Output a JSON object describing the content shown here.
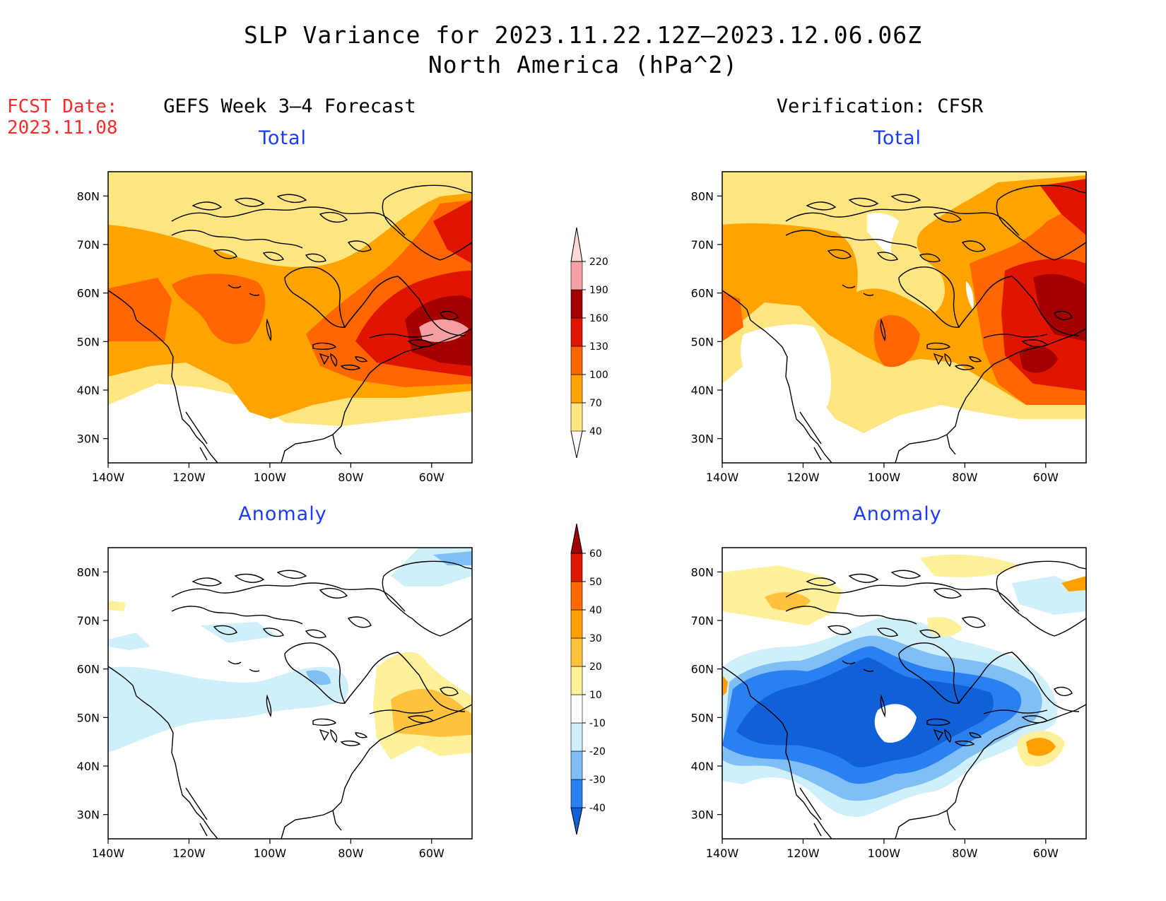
{
  "header": {
    "title_line1": "SLP Variance for 2023.11.22.12Z–2023.12.06.06Z",
    "title_line2": "North America (hPa^2)"
  },
  "fcst": {
    "label": "FCST Date:",
    "date": "2023.11.08"
  },
  "columns": {
    "left": "GEFS Week 3–4 Forecast",
    "right": "Verification: CFSR"
  },
  "panel_titles": {
    "total": "Total",
    "anomaly": "Anomaly"
  },
  "axes": {
    "lat_ticks": [
      "80N",
      "70N",
      "60N",
      "50N",
      "40N",
      "30N"
    ],
    "lon_ticks": [
      "140W",
      "120W",
      "100W",
      "80W",
      "60W"
    ]
  },
  "colorbars": {
    "total": {
      "levels": [
        "40",
        "70",
        "100",
        "130",
        "160",
        "190",
        "220"
      ],
      "colors": [
        "#ffe680",
        "#ffa300",
        "#ff6600",
        "#e01500",
        "#a50000",
        "#f4a0a0",
        "#fbd8d8"
      ]
    },
    "anomaly": {
      "levels": [
        "-40",
        "-30",
        "-20",
        "-10",
        "10",
        "20",
        "30",
        "40",
        "50",
        "60"
      ],
      "colors": [
        "#1060d8",
        "#2a80f0",
        "#7fbff5",
        "#cff0fb",
        "#ffffff",
        "#fff09a",
        "#ffc23c",
        "#ffa000",
        "#ff6a00",
        "#dd1800",
        "#a00000"
      ]
    }
  },
  "colors": {
    "light_yellow": "#ffe680",
    "orange": "#ffa300",
    "dark_orange": "#ff6600",
    "red": "#e01500",
    "dark_red": "#a50000",
    "pink": "#f4a0a0",
    "pale_cyan": "#cff0fb",
    "light_blue": "#7fbff5",
    "blue": "#2a80f0",
    "deep_blue": "#1060d8"
  }
}
